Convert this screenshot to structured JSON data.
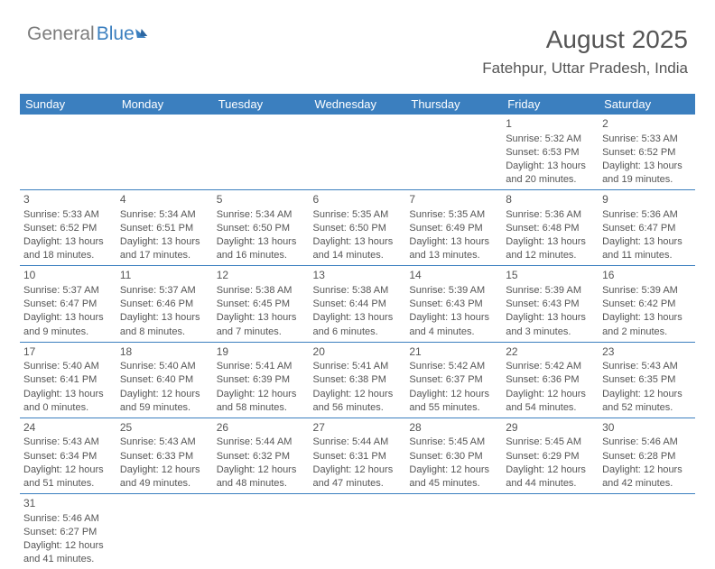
{
  "logo": {
    "part1": "General",
    "part2": "Blue"
  },
  "title": "August 2025",
  "location": "Fatehpur, Uttar Pradesh, India",
  "colors": {
    "header_bg": "#3b7fbf",
    "header_text": "#ffffff",
    "text": "#555555",
    "rule": "#3b7fbf"
  },
  "fonts": {
    "title_size": 28,
    "location_size": 17,
    "dayhead_size": 13,
    "cell_size": 11
  },
  "day_headers": [
    "Sunday",
    "Monday",
    "Tuesday",
    "Wednesday",
    "Thursday",
    "Friday",
    "Saturday"
  ],
  "weeks": [
    [
      null,
      null,
      null,
      null,
      null,
      {
        "n": "1",
        "sr": "Sunrise: 5:32 AM",
        "ss": "Sunset: 6:53 PM",
        "d1": "Daylight: 13 hours",
        "d2": "and 20 minutes."
      },
      {
        "n": "2",
        "sr": "Sunrise: 5:33 AM",
        "ss": "Sunset: 6:52 PM",
        "d1": "Daylight: 13 hours",
        "d2": "and 19 minutes."
      }
    ],
    [
      {
        "n": "3",
        "sr": "Sunrise: 5:33 AM",
        "ss": "Sunset: 6:52 PM",
        "d1": "Daylight: 13 hours",
        "d2": "and 18 minutes."
      },
      {
        "n": "4",
        "sr": "Sunrise: 5:34 AM",
        "ss": "Sunset: 6:51 PM",
        "d1": "Daylight: 13 hours",
        "d2": "and 17 minutes."
      },
      {
        "n": "5",
        "sr": "Sunrise: 5:34 AM",
        "ss": "Sunset: 6:50 PM",
        "d1": "Daylight: 13 hours",
        "d2": "and 16 minutes."
      },
      {
        "n": "6",
        "sr": "Sunrise: 5:35 AM",
        "ss": "Sunset: 6:50 PM",
        "d1": "Daylight: 13 hours",
        "d2": "and 14 minutes."
      },
      {
        "n": "7",
        "sr": "Sunrise: 5:35 AM",
        "ss": "Sunset: 6:49 PM",
        "d1": "Daylight: 13 hours",
        "d2": "and 13 minutes."
      },
      {
        "n": "8",
        "sr": "Sunrise: 5:36 AM",
        "ss": "Sunset: 6:48 PM",
        "d1": "Daylight: 13 hours",
        "d2": "and 12 minutes."
      },
      {
        "n": "9",
        "sr": "Sunrise: 5:36 AM",
        "ss": "Sunset: 6:47 PM",
        "d1": "Daylight: 13 hours",
        "d2": "and 11 minutes."
      }
    ],
    [
      {
        "n": "10",
        "sr": "Sunrise: 5:37 AM",
        "ss": "Sunset: 6:47 PM",
        "d1": "Daylight: 13 hours",
        "d2": "and 9 minutes."
      },
      {
        "n": "11",
        "sr": "Sunrise: 5:37 AM",
        "ss": "Sunset: 6:46 PM",
        "d1": "Daylight: 13 hours",
        "d2": "and 8 minutes."
      },
      {
        "n": "12",
        "sr": "Sunrise: 5:38 AM",
        "ss": "Sunset: 6:45 PM",
        "d1": "Daylight: 13 hours",
        "d2": "and 7 minutes."
      },
      {
        "n": "13",
        "sr": "Sunrise: 5:38 AM",
        "ss": "Sunset: 6:44 PM",
        "d1": "Daylight: 13 hours",
        "d2": "and 6 minutes."
      },
      {
        "n": "14",
        "sr": "Sunrise: 5:39 AM",
        "ss": "Sunset: 6:43 PM",
        "d1": "Daylight: 13 hours",
        "d2": "and 4 minutes."
      },
      {
        "n": "15",
        "sr": "Sunrise: 5:39 AM",
        "ss": "Sunset: 6:43 PM",
        "d1": "Daylight: 13 hours",
        "d2": "and 3 minutes."
      },
      {
        "n": "16",
        "sr": "Sunrise: 5:39 AM",
        "ss": "Sunset: 6:42 PM",
        "d1": "Daylight: 13 hours",
        "d2": "and 2 minutes."
      }
    ],
    [
      {
        "n": "17",
        "sr": "Sunrise: 5:40 AM",
        "ss": "Sunset: 6:41 PM",
        "d1": "Daylight: 13 hours",
        "d2": "and 0 minutes."
      },
      {
        "n": "18",
        "sr": "Sunrise: 5:40 AM",
        "ss": "Sunset: 6:40 PM",
        "d1": "Daylight: 12 hours",
        "d2": "and 59 minutes."
      },
      {
        "n": "19",
        "sr": "Sunrise: 5:41 AM",
        "ss": "Sunset: 6:39 PM",
        "d1": "Daylight: 12 hours",
        "d2": "and 58 minutes."
      },
      {
        "n": "20",
        "sr": "Sunrise: 5:41 AM",
        "ss": "Sunset: 6:38 PM",
        "d1": "Daylight: 12 hours",
        "d2": "and 56 minutes."
      },
      {
        "n": "21",
        "sr": "Sunrise: 5:42 AM",
        "ss": "Sunset: 6:37 PM",
        "d1": "Daylight: 12 hours",
        "d2": "and 55 minutes."
      },
      {
        "n": "22",
        "sr": "Sunrise: 5:42 AM",
        "ss": "Sunset: 6:36 PM",
        "d1": "Daylight: 12 hours",
        "d2": "and 54 minutes."
      },
      {
        "n": "23",
        "sr": "Sunrise: 5:43 AM",
        "ss": "Sunset: 6:35 PM",
        "d1": "Daylight: 12 hours",
        "d2": "and 52 minutes."
      }
    ],
    [
      {
        "n": "24",
        "sr": "Sunrise: 5:43 AM",
        "ss": "Sunset: 6:34 PM",
        "d1": "Daylight: 12 hours",
        "d2": "and 51 minutes."
      },
      {
        "n": "25",
        "sr": "Sunrise: 5:43 AM",
        "ss": "Sunset: 6:33 PM",
        "d1": "Daylight: 12 hours",
        "d2": "and 49 minutes."
      },
      {
        "n": "26",
        "sr": "Sunrise: 5:44 AM",
        "ss": "Sunset: 6:32 PM",
        "d1": "Daylight: 12 hours",
        "d2": "and 48 minutes."
      },
      {
        "n": "27",
        "sr": "Sunrise: 5:44 AM",
        "ss": "Sunset: 6:31 PM",
        "d1": "Daylight: 12 hours",
        "d2": "and 47 minutes."
      },
      {
        "n": "28",
        "sr": "Sunrise: 5:45 AM",
        "ss": "Sunset: 6:30 PM",
        "d1": "Daylight: 12 hours",
        "d2": "and 45 minutes."
      },
      {
        "n": "29",
        "sr": "Sunrise: 5:45 AM",
        "ss": "Sunset: 6:29 PM",
        "d1": "Daylight: 12 hours",
        "d2": "and 44 minutes."
      },
      {
        "n": "30",
        "sr": "Sunrise: 5:46 AM",
        "ss": "Sunset: 6:28 PM",
        "d1": "Daylight: 12 hours",
        "d2": "and 42 minutes."
      }
    ],
    [
      {
        "n": "31",
        "sr": "Sunrise: 5:46 AM",
        "ss": "Sunset: 6:27 PM",
        "d1": "Daylight: 12 hours",
        "d2": "and 41 minutes."
      },
      null,
      null,
      null,
      null,
      null,
      null
    ]
  ]
}
